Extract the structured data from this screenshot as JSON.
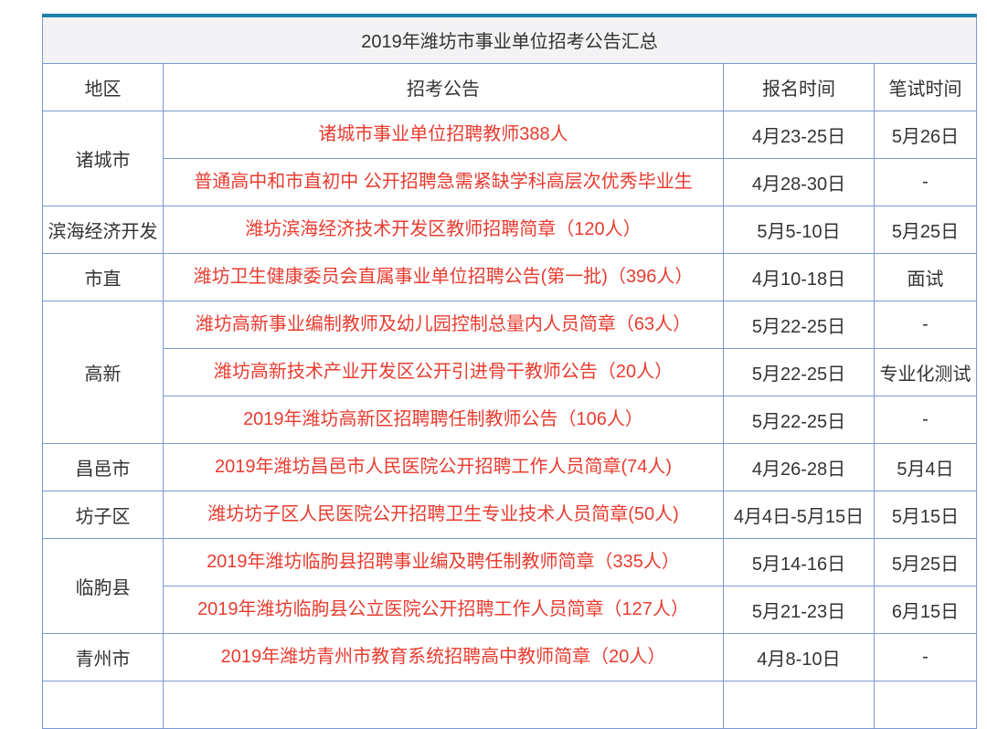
{
  "table": {
    "title": "2019年潍坊市事业单位招考公告汇总",
    "columns": [
      "地区",
      "招考公告",
      "报名时间",
      "笔试时间"
    ],
    "groups": [
      {
        "region": "诸城市",
        "rows": [
          {
            "announcement": "诸城市事业单位招聘教师388人",
            "signup": "4月23-25日",
            "exam": "5月26日"
          },
          {
            "announcement": "普通高中和市直初中 公开招聘急需紧缺学科高层次优秀毕业生",
            "signup": "4月28-30日",
            "exam": "-"
          }
        ]
      },
      {
        "region": "滨海经济开发",
        "rows": [
          {
            "announcement": "潍坊滨海经济技术开发区教师招聘简章（120人）",
            "signup": "5月5-10日",
            "exam": "5月25日"
          }
        ]
      },
      {
        "region": "市直",
        "rows": [
          {
            "announcement": "潍坊卫生健康委员会直属事业单位招聘公告(第一批)（396人）",
            "signup": "4月10-18日",
            "exam": "面试"
          }
        ]
      },
      {
        "region": "高新",
        "rows": [
          {
            "announcement": "潍坊高新事业编制教师及幼儿园控制总量内人员简章（63人）",
            "signup": "5月22-25日",
            "exam": "-"
          },
          {
            "announcement": "潍坊高新技术产业开发区公开引进骨干教师公告（20人）",
            "signup": "5月22-25日",
            "exam": "专业化测试"
          },
          {
            "announcement": "2019年潍坊高新区招聘聘任制教师公告（106人）",
            "signup": "5月22-25日",
            "exam": "-"
          }
        ]
      },
      {
        "region": "昌邑市",
        "rows": [
          {
            "announcement": "2019年潍坊昌邑市人民医院公开招聘工作人员简章(74人)",
            "signup": "4月26-28日",
            "exam": "5月4日"
          }
        ]
      },
      {
        "region": "坊子区",
        "rows": [
          {
            "announcement": "潍坊坊子区人民医院公开招聘卫生专业技术人员简章(50人)",
            "signup": "4月4日-5月15日",
            "exam": "5月15日"
          }
        ]
      },
      {
        "region": "临朐县",
        "rows": [
          {
            "announcement": "2019年潍坊临朐县招聘事业编及聘任制教师简章（335人）",
            "signup": "5月14-16日",
            "exam": "5月25日"
          },
          {
            "announcement": "2019年潍坊临朐县公立医院公开招聘工作人员简章（127人）",
            "signup": "5月21-23日",
            "exam": "6月15日"
          }
        ]
      },
      {
        "region": "青州市",
        "rows": [
          {
            "announcement": "2019年潍坊青州市教育系统招聘高中教师简章（20人）",
            "signup": "4月8-10日",
            "exam": "-"
          }
        ]
      }
    ]
  },
  "colors": {
    "accent_top_border": "#1f81a6",
    "grid_border": "#7b99d2",
    "link_red": "#e83c30",
    "title_bg": "#f3f3f5",
    "text_dark": "#333333"
  }
}
